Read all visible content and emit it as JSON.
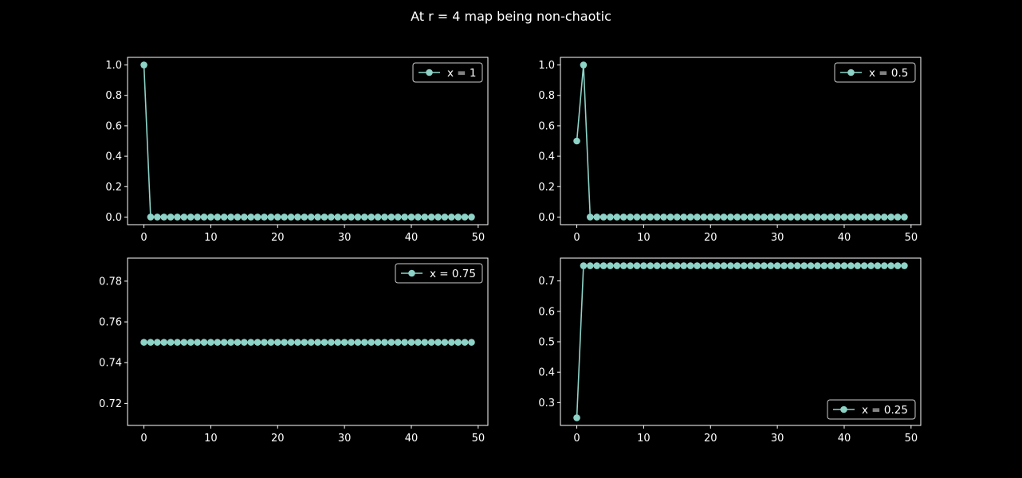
{
  "figure": {
    "suptitle": "At r = 4 map  being non-chaotic",
    "background": "#000000",
    "foreground": "#ffffff",
    "series_color": "#8dd3c7"
  },
  "chart_data": [
    {
      "type": "line",
      "title": "",
      "xlabel": "",
      "ylabel": "",
      "legend_location": "upper right",
      "grid": false,
      "xlim": [
        -2.45,
        51.45
      ],
      "ylim": [
        -0.05,
        1.05
      ],
      "xticks": [
        0,
        10,
        20,
        30,
        40,
        50
      ],
      "xtick_labels": [
        "0",
        "10",
        "20",
        "30",
        "40",
        "50"
      ],
      "yticks": [
        0.0,
        0.2,
        0.4,
        0.6,
        0.8,
        1.0
      ],
      "ytick_labels": [
        "0.0",
        "0.2",
        "0.4",
        "0.6",
        "0.8",
        "1.0"
      ],
      "series": [
        {
          "name": "x = 1",
          "marker": "circle",
          "x": [
            0,
            1,
            2,
            3,
            4,
            5,
            6,
            7,
            8,
            9,
            10,
            11,
            12,
            13,
            14,
            15,
            16,
            17,
            18,
            19,
            20,
            21,
            22,
            23,
            24,
            25,
            26,
            27,
            28,
            29,
            30,
            31,
            32,
            33,
            34,
            35,
            36,
            37,
            38,
            39,
            40,
            41,
            42,
            43,
            44,
            45,
            46,
            47,
            48,
            49
          ],
          "y": [
            1,
            0,
            0,
            0,
            0,
            0,
            0,
            0,
            0,
            0,
            0,
            0,
            0,
            0,
            0,
            0,
            0,
            0,
            0,
            0,
            0,
            0,
            0,
            0,
            0,
            0,
            0,
            0,
            0,
            0,
            0,
            0,
            0,
            0,
            0,
            0,
            0,
            0,
            0,
            0,
            0,
            0,
            0,
            0,
            0,
            0,
            0,
            0,
            0,
            0
          ]
        }
      ]
    },
    {
      "type": "line",
      "title": "",
      "xlabel": "",
      "ylabel": "",
      "legend_location": "upper right",
      "grid": false,
      "xlim": [
        -2.45,
        51.45
      ],
      "ylim": [
        -0.05,
        1.05
      ],
      "xticks": [
        0,
        10,
        20,
        30,
        40,
        50
      ],
      "xtick_labels": [
        "0",
        "10",
        "20",
        "30",
        "40",
        "50"
      ],
      "yticks": [
        0.0,
        0.2,
        0.4,
        0.6,
        0.8,
        1.0
      ],
      "ytick_labels": [
        "0.0",
        "0.2",
        "0.4",
        "0.6",
        "0.8",
        "1.0"
      ],
      "series": [
        {
          "name": "x = 0.5",
          "marker": "circle",
          "x": [
            0,
            1,
            2,
            3,
            4,
            5,
            6,
            7,
            8,
            9,
            10,
            11,
            12,
            13,
            14,
            15,
            16,
            17,
            18,
            19,
            20,
            21,
            22,
            23,
            24,
            25,
            26,
            27,
            28,
            29,
            30,
            31,
            32,
            33,
            34,
            35,
            36,
            37,
            38,
            39,
            40,
            41,
            42,
            43,
            44,
            45,
            46,
            47,
            48,
            49
          ],
          "y": [
            0.5,
            1,
            0,
            0,
            0,
            0,
            0,
            0,
            0,
            0,
            0,
            0,
            0,
            0,
            0,
            0,
            0,
            0,
            0,
            0,
            0,
            0,
            0,
            0,
            0,
            0,
            0,
            0,
            0,
            0,
            0,
            0,
            0,
            0,
            0,
            0,
            0,
            0,
            0,
            0,
            0,
            0,
            0,
            0,
            0,
            0,
            0,
            0,
            0,
            0
          ]
        }
      ]
    },
    {
      "type": "line",
      "title": "",
      "xlabel": "",
      "ylabel": "",
      "legend_location": "upper right",
      "grid": false,
      "xlim": [
        -2.45,
        51.45
      ],
      "ylim": [
        0.7092,
        0.7913
      ],
      "xticks": [
        0,
        10,
        20,
        30,
        40,
        50
      ],
      "xtick_labels": [
        "0",
        "10",
        "20",
        "30",
        "40",
        "50"
      ],
      "yticks": [
        0.72,
        0.74,
        0.76,
        0.78
      ],
      "ytick_labels": [
        "0.72",
        "0.74",
        "0.76",
        "0.78"
      ],
      "series": [
        {
          "name": "x = 0.75",
          "marker": "circle",
          "x": [
            0,
            1,
            2,
            3,
            4,
            5,
            6,
            7,
            8,
            9,
            10,
            11,
            12,
            13,
            14,
            15,
            16,
            17,
            18,
            19,
            20,
            21,
            22,
            23,
            24,
            25,
            26,
            27,
            28,
            29,
            30,
            31,
            32,
            33,
            34,
            35,
            36,
            37,
            38,
            39,
            40,
            41,
            42,
            43,
            44,
            45,
            46,
            47,
            48,
            49
          ],
          "y": [
            0.75,
            0.75,
            0.75,
            0.75,
            0.75,
            0.75,
            0.75,
            0.75,
            0.75,
            0.75,
            0.75,
            0.75,
            0.75,
            0.75,
            0.75,
            0.75,
            0.75,
            0.75,
            0.75,
            0.75,
            0.75,
            0.75,
            0.75,
            0.75,
            0.75,
            0.75,
            0.75,
            0.75,
            0.75,
            0.75,
            0.75,
            0.75,
            0.75,
            0.75,
            0.75,
            0.75,
            0.75,
            0.75,
            0.75,
            0.75,
            0.75,
            0.75,
            0.75,
            0.75,
            0.75,
            0.75,
            0.75,
            0.75,
            0.75,
            0.75
          ]
        }
      ]
    },
    {
      "type": "line",
      "title": "",
      "xlabel": "",
      "ylabel": "",
      "legend_location": "lower right",
      "grid": false,
      "xlim": [
        -2.45,
        51.45
      ],
      "ylim": [
        0.225,
        0.775
      ],
      "xticks": [
        0,
        10,
        20,
        30,
        40,
        50
      ],
      "xtick_labels": [
        "0",
        "10",
        "20",
        "30",
        "40",
        "50"
      ],
      "yticks": [
        0.3,
        0.4,
        0.5,
        0.6,
        0.7
      ],
      "ytick_labels": [
        "0.3",
        "0.4",
        "0.5",
        "0.6",
        "0.7"
      ],
      "series": [
        {
          "name": "x = 0.25",
          "marker": "circle",
          "x": [
            0,
            1,
            2,
            3,
            4,
            5,
            6,
            7,
            8,
            9,
            10,
            11,
            12,
            13,
            14,
            15,
            16,
            17,
            18,
            19,
            20,
            21,
            22,
            23,
            24,
            25,
            26,
            27,
            28,
            29,
            30,
            31,
            32,
            33,
            34,
            35,
            36,
            37,
            38,
            39,
            40,
            41,
            42,
            43,
            44,
            45,
            46,
            47,
            48,
            49
          ],
          "y": [
            0.25,
            0.75,
            0.75,
            0.75,
            0.75,
            0.75,
            0.75,
            0.75,
            0.75,
            0.75,
            0.75,
            0.75,
            0.75,
            0.75,
            0.75,
            0.75,
            0.75,
            0.75,
            0.75,
            0.75,
            0.75,
            0.75,
            0.75,
            0.75,
            0.75,
            0.75,
            0.75,
            0.75,
            0.75,
            0.75,
            0.75,
            0.75,
            0.75,
            0.75,
            0.75,
            0.75,
            0.75,
            0.75,
            0.75,
            0.75,
            0.75,
            0.75,
            0.75,
            0.75,
            0.75,
            0.75,
            0.75,
            0.75,
            0.75,
            0.75
          ]
        }
      ]
    }
  ]
}
